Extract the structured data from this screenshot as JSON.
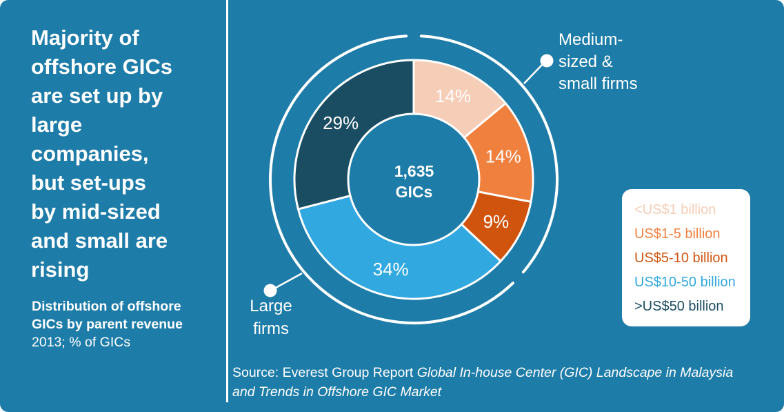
{
  "panel": {
    "title": "Majority of\noffshore GICs\nare set up by\nlarge\ncompanies,\nbut set-ups\nby mid-sized\nand small are\nrising",
    "subtitle_bold": "Distribution of offshore\nGICs by parent revenue",
    "subtitle_note": "2013; % of GICs"
  },
  "chart_data": {
    "type": "pie",
    "subtype": "donut",
    "title": "Distribution of offshore GICs by parent revenue 2013; % of GICs",
    "labels": [
      "<US$1 billion",
      "US$1-5 billion",
      "US$5-10 billion",
      "US$10-50 billion",
      ">US$50 billion"
    ],
    "values": [
      14,
      14,
      9,
      34,
      29
    ],
    "colors": [
      "#f6cdb6",
      "#f0803e",
      "#d0540e",
      "#31a8e0",
      "#1b4d62"
    ],
    "center_label": "1,635\nGICs",
    "start_angle_deg": 0,
    "direction": "clockwise",
    "groups": [
      {
        "label": "Medium-sized & small firms",
        "segments": [
          "<US$1 billion",
          "US$1-5 billion",
          "US$5-10 billion"
        ],
        "span_pct": 37
      },
      {
        "label": "Large firms",
        "segments": [
          "US$10-50 billion",
          ">US$50 billion"
        ],
        "span_pct": 63
      }
    ],
    "legend_position": "right"
  },
  "callouts": {
    "medium": "Medium-\nsized &\nsmall firms",
    "large": "Large\nfirms"
  },
  "source": {
    "prefix": "Source: Everest Group Report ",
    "italic_line1": "Global In-house Center (GIC) Landscape in Malaysia",
    "italic_line2": "and Trends in Offshore GIC Market"
  },
  "colors": {
    "background": "#1e7ca8",
    "text": "#ffffff",
    "legend_background": "#ffffff"
  }
}
